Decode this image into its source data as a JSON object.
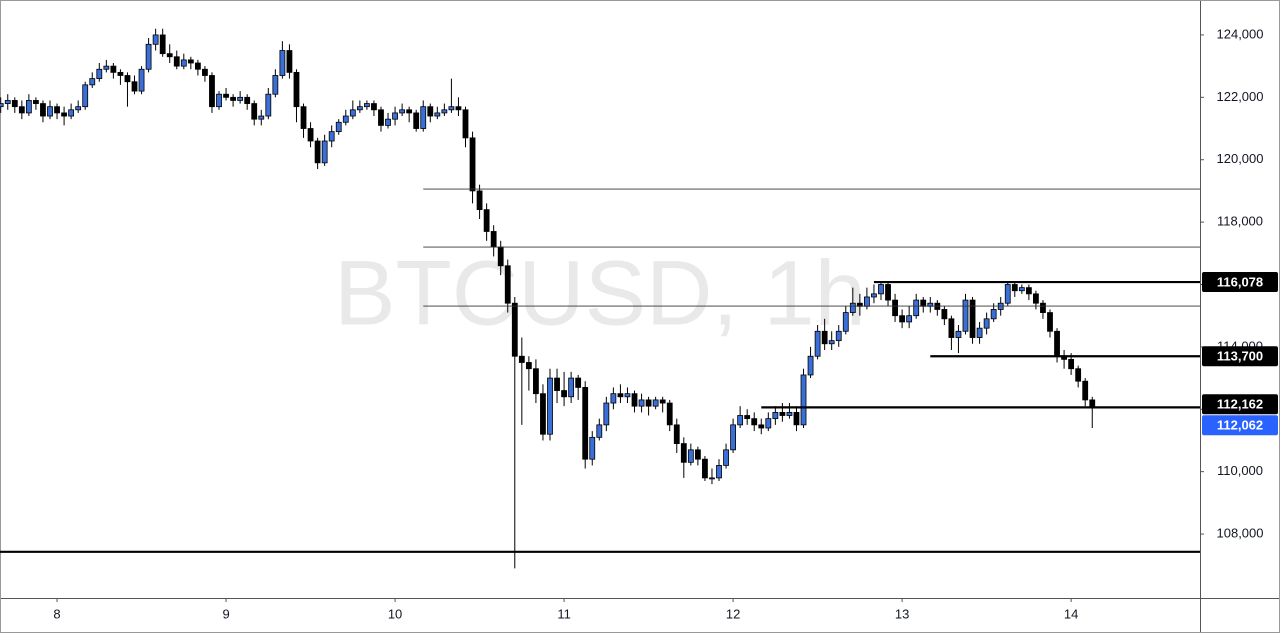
{
  "chart_data": {
    "type": "candlestick",
    "title": "BTCUSD, 1h",
    "up_color": "#3b6fd8",
    "down_color": "#000000",
    "x": [
      -8,
      -7,
      -6,
      -5,
      -4,
      -3,
      -2,
      -1,
      0,
      1,
      2,
      3,
      4,
      5,
      6,
      7,
      8,
      9,
      10,
      11,
      12,
      13,
      14,
      15,
      16,
      17,
      18,
      19,
      20,
      21,
      22,
      23,
      24,
      25,
      26,
      27,
      28,
      29,
      30,
      31,
      32,
      33,
      34,
      35,
      36,
      37,
      38,
      39,
      40,
      41,
      42,
      43,
      44,
      45,
      46,
      47,
      48,
      49,
      50,
      51,
      52,
      53,
      54,
      55,
      56,
      57,
      58,
      59,
      60,
      61,
      62,
      63,
      64,
      65,
      66,
      67,
      68,
      69,
      70,
      71,
      72,
      73,
      74,
      75,
      76,
      77,
      78,
      79,
      80,
      81,
      82,
      83,
      84,
      85,
      86,
      87,
      88,
      89,
      90,
      91,
      92,
      93,
      94,
      95,
      96,
      97,
      98,
      99,
      100,
      101,
      102,
      103,
      104,
      105,
      106,
      107,
      108,
      109,
      110,
      111,
      112,
      113,
      114,
      115,
      116,
      117,
      118,
      119,
      120,
      121,
      122,
      123,
      124,
      125,
      126,
      127,
      128,
      129,
      130,
      131,
      132,
      133,
      134,
      135,
      136,
      137,
      138,
      139,
      140,
      141,
      142,
      143,
      144,
      145,
      146,
      147
    ],
    "open": [
      121700,
      121800,
      121900,
      121700,
      121500,
      121900,
      121800,
      121400,
      121700,
      121500,
      121400,
      121600,
      121700,
      122400,
      122600,
      122900,
      123000,
      122800,
      122700,
      122500,
      122200,
      122900,
      123700,
      124000,
      123400,
      123300,
      123000,
      123200,
      123100,
      122900,
      122700,
      121700,
      122100,
      122000,
      121900,
      122000,
      121800,
      121300,
      121400,
      122100,
      122700,
      123500,
      122800,
      121700,
      121000,
      120600,
      119900,
      120600,
      120900,
      121200,
      121400,
      121600,
      121700,
      121800,
      121600,
      121100,
      121300,
      121500,
      121600,
      121500,
      121000,
      121700,
      121400,
      121500,
      121600,
      121700,
      121600,
      120700,
      119000,
      118400,
      117700,
      117200,
      116600,
      115400,
      113700,
      113500,
      113300,
      112500,
      111200,
      113000,
      112600,
      112400,
      113000,
      112700,
      110400,
      111100,
      111500,
      112200,
      112500,
      112400,
      112500,
      112100,
      112300,
      112100,
      112300,
      112200,
      111500,
      110900,
      110300,
      110700,
      110400,
      109800,
      109800,
      110200,
      110700,
      111500,
      111800,
      111700,
      111500,
      111400,
      111700,
      111900,
      111800,
      111900,
      111500,
      113100,
      113700,
      114500,
      114100,
      114200,
      114500,
      115100,
      115400,
      115300,
      115600,
      115700,
      116000,
      115500,
      115000,
      114800,
      115000,
      115500,
      115300,
      115400,
      115200,
      114900,
      114300,
      114500,
      115500,
      114300,
      114600,
      114900,
      115200,
      115400,
      116000,
      115800,
      115900,
      115700,
      115400,
      115100,
      114500,
      113700,
      113600,
      113300,
      112900,
      112300
    ],
    "high": [
      122000,
      122100,
      122000,
      121900,
      122100,
      122000,
      121900,
      121900,
      121800,
      121700,
      121800,
      121900,
      122500,
      122800,
      123100,
      123200,
      123100,
      122900,
      122800,
      122700,
      123000,
      123900,
      124200,
      124200,
      123700,
      123500,
      123400,
      123300,
      123200,
      123000,
      122800,
      122200,
      122300,
      122100,
      122200,
      122100,
      121900,
      121600,
      122300,
      122900,
      123800,
      123700,
      122900,
      121800,
      121200,
      120700,
      120800,
      121100,
      121300,
      121600,
      121900,
      121900,
      121900,
      121900,
      121700,
      121500,
      121700,
      121800,
      121700,
      121600,
      121900,
      121800,
      121700,
      121800,
      122600,
      122000,
      121700,
      120900,
      119200,
      118600,
      117900,
      117400,
      116800,
      115600,
      114300,
      113700,
      113600,
      112800,
      113300,
      113300,
      113200,
      113200,
      113100,
      112900,
      111300,
      111700,
      112400,
      112700,
      112800,
      112700,
      112600,
      112500,
      112400,
      112400,
      112400,
      112300,
      111700,
      111100,
      110900,
      110800,
      110500,
      110100,
      110400,
      110900,
      111700,
      112100,
      112000,
      111900,
      111700,
      111900,
      112100,
      112200,
      112200,
      112100,
      113300,
      114000,
      114700,
      114900,
      114500,
      114700,
      115300,
      115900,
      115700,
      115900,
      116000,
      116100,
      116100,
      115700,
      115200,
      115300,
      115700,
      115600,
      115600,
      115500,
      115300,
      115000,
      114700,
      115700,
      115600,
      114800,
      115100,
      115400,
      115600,
      116100,
      116100,
      116000,
      116000,
      115800,
      115500,
      115200,
      114600,
      113900,
      113800,
      113400,
      113000,
      112400
    ],
    "low": [
      121500,
      121600,
      121500,
      121300,
      121400,
      121600,
      121200,
      121300,
      121300,
      121100,
      121300,
      121500,
      121600,
      122300,
      122500,
      122800,
      122600,
      122400,
      121700,
      122100,
      122100,
      122800,
      123500,
      123300,
      123100,
      122900,
      122900,
      122900,
      122700,
      122500,
      121500,
      121600,
      121900,
      121700,
      121800,
      121600,
      121100,
      121100,
      121300,
      122000,
      122600,
      122600,
      121200,
      120700,
      120400,
      119700,
      119800,
      120400,
      120800,
      121100,
      121300,
      121500,
      121600,
      121400,
      120900,
      121000,
      121100,
      121400,
      121200,
      120900,
      120900,
      121200,
      121300,
      121400,
      121500,
      121400,
      120400,
      118600,
      118100,
      117400,
      116900,
      116300,
      115100,
      106900,
      111500,
      112600,
      112200,
      111000,
      111000,
      112200,
      112100,
      112200,
      112300,
      110100,
      110200,
      111000,
      111300,
      112000,
      112200,
      112200,
      111900,
      111900,
      111800,
      112000,
      111900,
      111300,
      110600,
      109800,
      110200,
      110200,
      109700,
      109600,
      109700,
      110100,
      110600,
      111400,
      111500,
      111300,
      111200,
      111300,
      111500,
      111600,
      111700,
      111300,
      111400,
      113000,
      113600,
      113900,
      113900,
      114000,
      114400,
      115000,
      115000,
      115200,
      115400,
      115500,
      115300,
      114800,
      114600,
      114600,
      114900,
      115100,
      115100,
      115000,
      114700,
      113900,
      113800,
      114400,
      114100,
      114100,
      114400,
      114800,
      115000,
      115300,
      115600,
      115700,
      115500,
      115200,
      114900,
      114300,
      113500,
      113300,
      113100,
      112700,
      112100,
      111400
    ],
    "close": [
      121800,
      121900,
      121700,
      121500,
      121900,
      121800,
      121400,
      121700,
      121500,
      121400,
      121600,
      121700,
      122400,
      122600,
      122900,
      123000,
      122800,
      122700,
      122500,
      122200,
      122900,
      123700,
      124000,
      123400,
      123300,
      123000,
      123200,
      123100,
      122900,
      122700,
      121700,
      122100,
      122000,
      121900,
      122000,
      121800,
      121300,
      121400,
      122100,
      122700,
      123500,
      122800,
      121700,
      121000,
      120600,
      119900,
      120600,
      120900,
      121200,
      121400,
      121600,
      121700,
      121800,
      121600,
      121100,
      121300,
      121500,
      121600,
      121500,
      121000,
      121700,
      121400,
      121500,
      121600,
      121700,
      121600,
      120700,
      119000,
      118400,
      117700,
      117200,
      116600,
      115400,
      113700,
      113500,
      113300,
      112500,
      111200,
      113000,
      112600,
      112400,
      113000,
      112700,
      110400,
      111100,
      111500,
      112200,
      112500,
      112400,
      112500,
      112100,
      112300,
      112100,
      112300,
      112200,
      111500,
      110900,
      110300,
      110700,
      110400,
      109800,
      109800,
      110200,
      110700,
      111500,
      111800,
      111700,
      111500,
      111400,
      111700,
      111900,
      111800,
      111900,
      111500,
      113100,
      113700,
      114500,
      114100,
      114200,
      114500,
      115100,
      115400,
      115300,
      115600,
      115700,
      116000,
      115500,
      115000,
      114800,
      115000,
      115500,
      115300,
      115400,
      115200,
      114900,
      114300,
      114500,
      115500,
      114300,
      114600,
      114900,
      115200,
      115400,
      116000,
      115800,
      115900,
      115700,
      115400,
      115100,
      114500,
      113700,
      113600,
      113300,
      112900,
      112300,
      112062
    ],
    "xlim": [
      -8.1,
      162.3
    ],
    "ylim": [
      105950,
      125120
    ],
    "xticks": [
      {
        "value": 0,
        "label": "8"
      },
      {
        "value": 24,
        "label": "9"
      },
      {
        "value": 48,
        "label": "10"
      },
      {
        "value": 72,
        "label": "11"
      },
      {
        "value": 96,
        "label": "12"
      },
      {
        "value": 120,
        "label": "13"
      },
      {
        "value": 144,
        "label": "14"
      }
    ],
    "yticks": [
      {
        "value": 108000,
        "label": "108,000"
      },
      {
        "value": 110000,
        "label": "110,000"
      },
      {
        "value": 112000,
        "label": "112,000"
      },
      {
        "value": 114000,
        "label": "114,000"
      },
      {
        "value": 116000,
        "label": "116,000"
      },
      {
        "value": 118000,
        "label": "118,000"
      },
      {
        "value": 120000,
        "label": "120,000"
      },
      {
        "value": 122000,
        "label": "122,000"
      },
      {
        "value": 124000,
        "label": "124,000"
      }
    ],
    "price_lines": [
      {
        "value": 119060,
        "from": 52,
        "style": "thin"
      },
      {
        "value": 117200,
        "from": 52,
        "style": "thin"
      },
      {
        "value": 115310,
        "from": 52,
        "style": "thin"
      },
      {
        "value": 116078,
        "from": 116,
        "style": "thick"
      },
      {
        "value": 113700,
        "from": 124,
        "style": "thick"
      },
      {
        "value": 112062,
        "from": 100,
        "style": "thick"
      },
      {
        "value": 107430,
        "from": -8.1,
        "style": "thick"
      }
    ],
    "price_labels": [
      {
        "value": 116078,
        "label": "116,078",
        "color": "#000000"
      },
      {
        "value": 113700,
        "label": "113,700",
        "color": "#000000"
      },
      {
        "value": 112162,
        "label": "112,162",
        "color": "#000000"
      },
      {
        "value": 112062,
        "label": "112,062",
        "color": "#2962ff"
      }
    ]
  }
}
